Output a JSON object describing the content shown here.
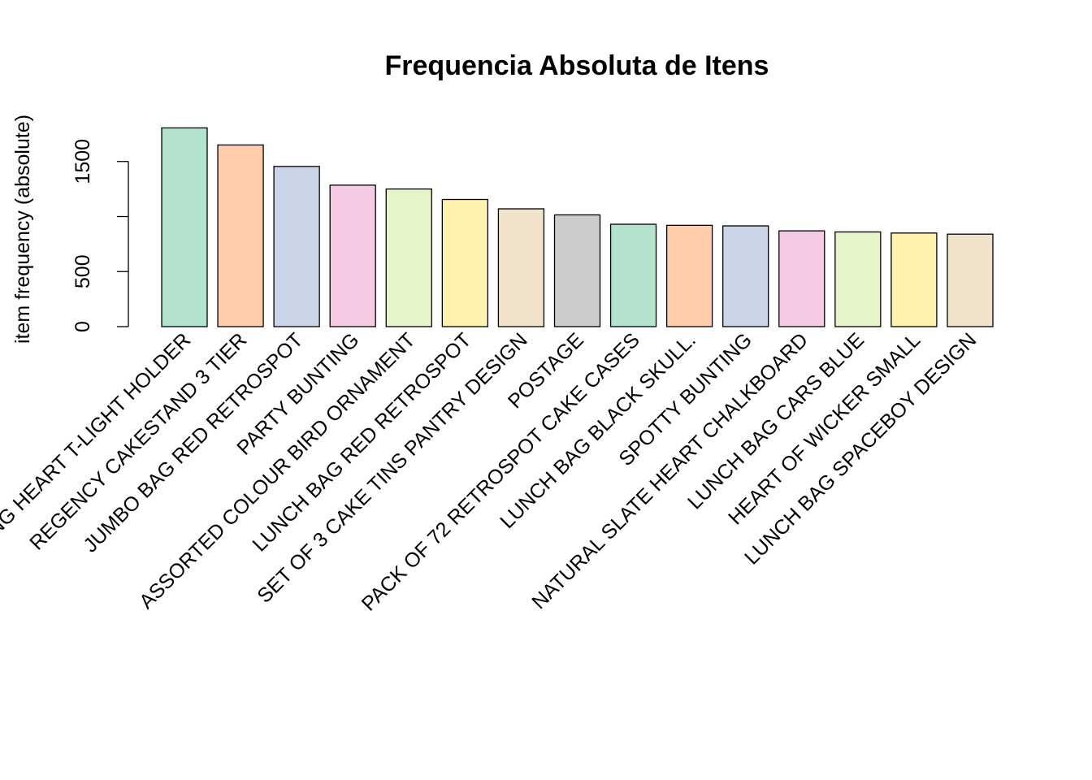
{
  "chart_data": {
    "type": "bar",
    "title": "Frequencia Absoluta de Itens",
    "xlabel": "",
    "ylabel": "item frequency (absolute)",
    "ylim": [
      0,
      1800
    ],
    "yticks": [
      0,
      500,
      1000,
      1500
    ],
    "ytick_labels": [
      "0",
      "500",
      "",
      "1500"
    ],
    "grid": false,
    "legend": "none",
    "categories": [
      "WHITE HANGING HEART T-LIGHT HOLDER",
      "REGENCY CAKESTAND 3 TIER",
      "JUMBO BAG RED RETROSPOT",
      "PARTY BUNTING",
      "ASSORTED COLOUR BIRD ORNAMENT",
      "LUNCH BAG RED RETROSPOT",
      "SET OF 3 CAKE TINS PANTRY DESIGN",
      "POSTAGE",
      "PACK OF 72 RETROSPOT CAKE CASES",
      "LUNCH BAG  BLACK SKULL.",
      "SPOTTY BUNTING",
      "NATURAL SLATE HEART CHALKBOARD",
      "LUNCH BAG CARS BLUE",
      "HEART OF WICKER SMALL",
      "LUNCH BAG SPACEBOY DESIGN"
    ],
    "values": [
      1805,
      1650,
      1455,
      1285,
      1250,
      1155,
      1070,
      1015,
      930,
      920,
      915,
      870,
      860,
      850,
      840
    ],
    "colors": [
      "#B3E2CD",
      "#FDCDAC",
      "#CBD5E8",
      "#F4CAE4",
      "#E6F5C9",
      "#FFF2AE",
      "#F1E2CC",
      "#CCCCCC",
      "#B3E2CD",
      "#FDCDAC",
      "#CBD5E8",
      "#F4CAE4",
      "#E6F5C9",
      "#FFF2AE",
      "#F1E2CC"
    ]
  }
}
